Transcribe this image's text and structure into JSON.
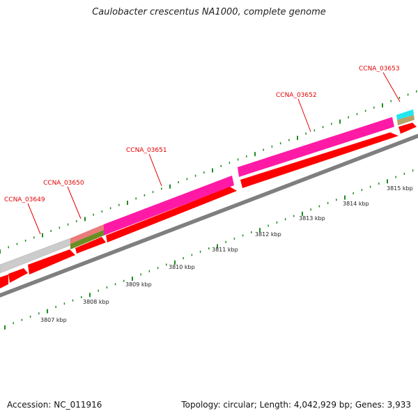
{
  "title": "Caulobacter crescentus NA1000, complete genome",
  "footer": {
    "accession": "Accession: NC_011916",
    "summary": "Topology: circular; Length: 4,042,929 bp; Genes: 3,933"
  },
  "colors": {
    "cds": "#ff0000",
    "gene_label": "#e00000",
    "backbone": "#7f7f7f",
    "tick": "#1e8c1e"
  },
  "genes": [
    {
      "name": "CCNA_03649",
      "color": "#cccccc"
    },
    {
      "name": "CCNA_03650",
      "color": "#ea7b7b"
    },
    {
      "name": "CCNA_03651",
      "color": "#ff1aa6"
    },
    {
      "name": "CCNA_03652",
      "color": "#ff1aa6"
    },
    {
      "name": "CCNA_03653",
      "color": "#22e6f0"
    }
  ],
  "scale": {
    "unit": "kbp",
    "labels": [
      "3807 kbp",
      "3808 kbp",
      "3809 kbp",
      "3810 kbp",
      "3811 kbp",
      "3812 kbp",
      "3813 kbp",
      "3814 kbp",
      "3815 kbp"
    ]
  }
}
